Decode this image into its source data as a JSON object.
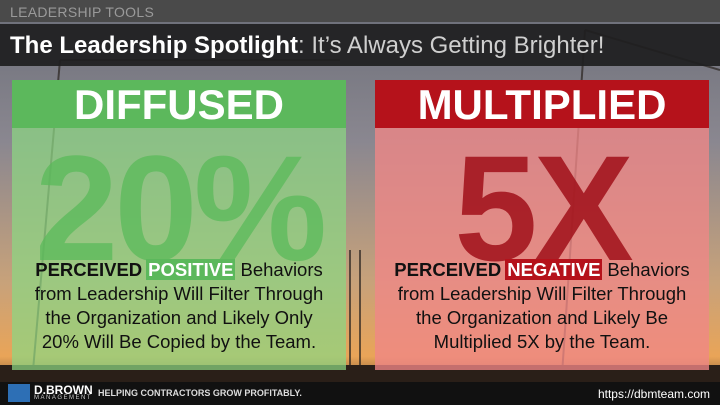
{
  "header": {
    "section": "LEADERSHIP TOOLS",
    "title": "The Leadership Spotlight",
    "subtitle": ": It’s Always Getting Brighter!"
  },
  "panels": [
    {
      "heading": "DIFFUSED",
      "figure": "20%",
      "body": {
        "lead": "PERCEIVED",
        "highlight": "POSITIVE",
        "first_line_end": "Behaviors",
        "lines": [
          "from Leadership Will Filter Through",
          "the Organization and Likely Only",
          "20% Will Be Copied by the Team."
        ]
      }
    },
    {
      "heading": "MULTIPLIED",
      "figure": "5X",
      "body": {
        "lead": "PERCEIVED",
        "highlight": "NEGATIVE",
        "first_line_end": "Behaviors",
        "lines": [
          "from Leadership Will Filter Through",
          "the Organization and Likely Be",
          "Multiplied 5X by the Team."
        ]
      }
    }
  ],
  "footer": {
    "brand": "D.BROWN",
    "brand_sub": "MANAGEMENT",
    "tagline": "HELPING CONTRACTORS GROW PROFITABLY.",
    "url": "https://dbmteam.com"
  }
}
